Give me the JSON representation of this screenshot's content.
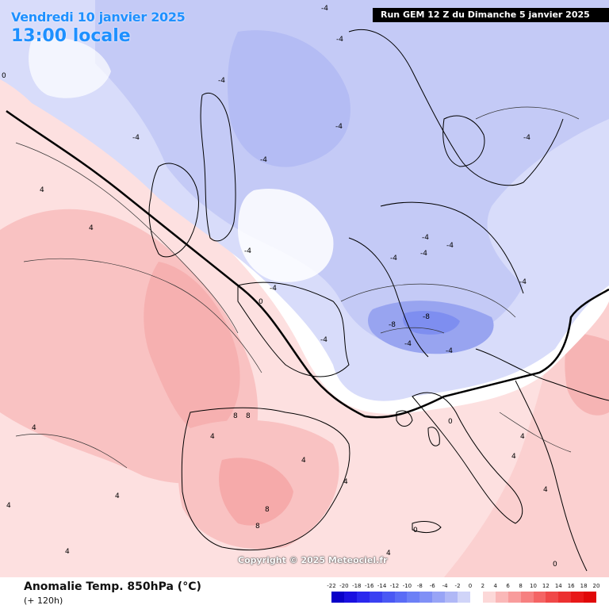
{
  "header": {
    "date_line": "Vendredi 10 janvier 2025",
    "time_line": "13:00 locale",
    "run_info": "Run GEM 12 Z du Dimanche 5 janvier 2025"
  },
  "footer": {
    "parameter": "Anomalie Temp. 850hPa (°C)",
    "lead_time": "(+ 120h)",
    "copyright": "Copyright © 2025 Meteociel.fr"
  },
  "legend": {
    "values": [
      "-22",
      "-20",
      "-18",
      "-16",
      "-14",
      "-12",
      "-10",
      "-8",
      "-6",
      "-4",
      "-2",
      "0",
      "2",
      "4",
      "6",
      "8",
      "10",
      "12",
      "14",
      "16",
      "18",
      "20"
    ],
    "colors": [
      "#0a00c8",
      "#1a10e0",
      "#2a28ee",
      "#3a40f2",
      "#4a58f4",
      "#5a6cf6",
      "#6c80f6",
      "#8090f6",
      "#98a4f6",
      "#b0b8f6",
      "#d0d4f8",
      "#ffffff",
      "#fcd8d8",
      "#fab8b8",
      "#f89c9c",
      "#f68080",
      "#f46464",
      "#f04848",
      "#ec3030",
      "#e81818",
      "#e00808"
    ]
  },
  "map_labels": [
    "-4",
    "-4",
    "-4",
    "-4",
    "-4",
    "-4",
    "-4",
    "-4",
    "-4",
    "-4",
    "-4",
    "-4",
    "-4",
    "-4",
    "-4",
    "-4",
    "-4",
    "-8",
    "-8",
    "0",
    "0",
    "0",
    "0",
    "0",
    "4",
    "4",
    "4",
    "4",
    "4",
    "4",
    "4",
    "4",
    "4",
    "4",
    "4",
    "4",
    "4",
    "8",
    "8",
    "8",
    "8"
  ]
}
